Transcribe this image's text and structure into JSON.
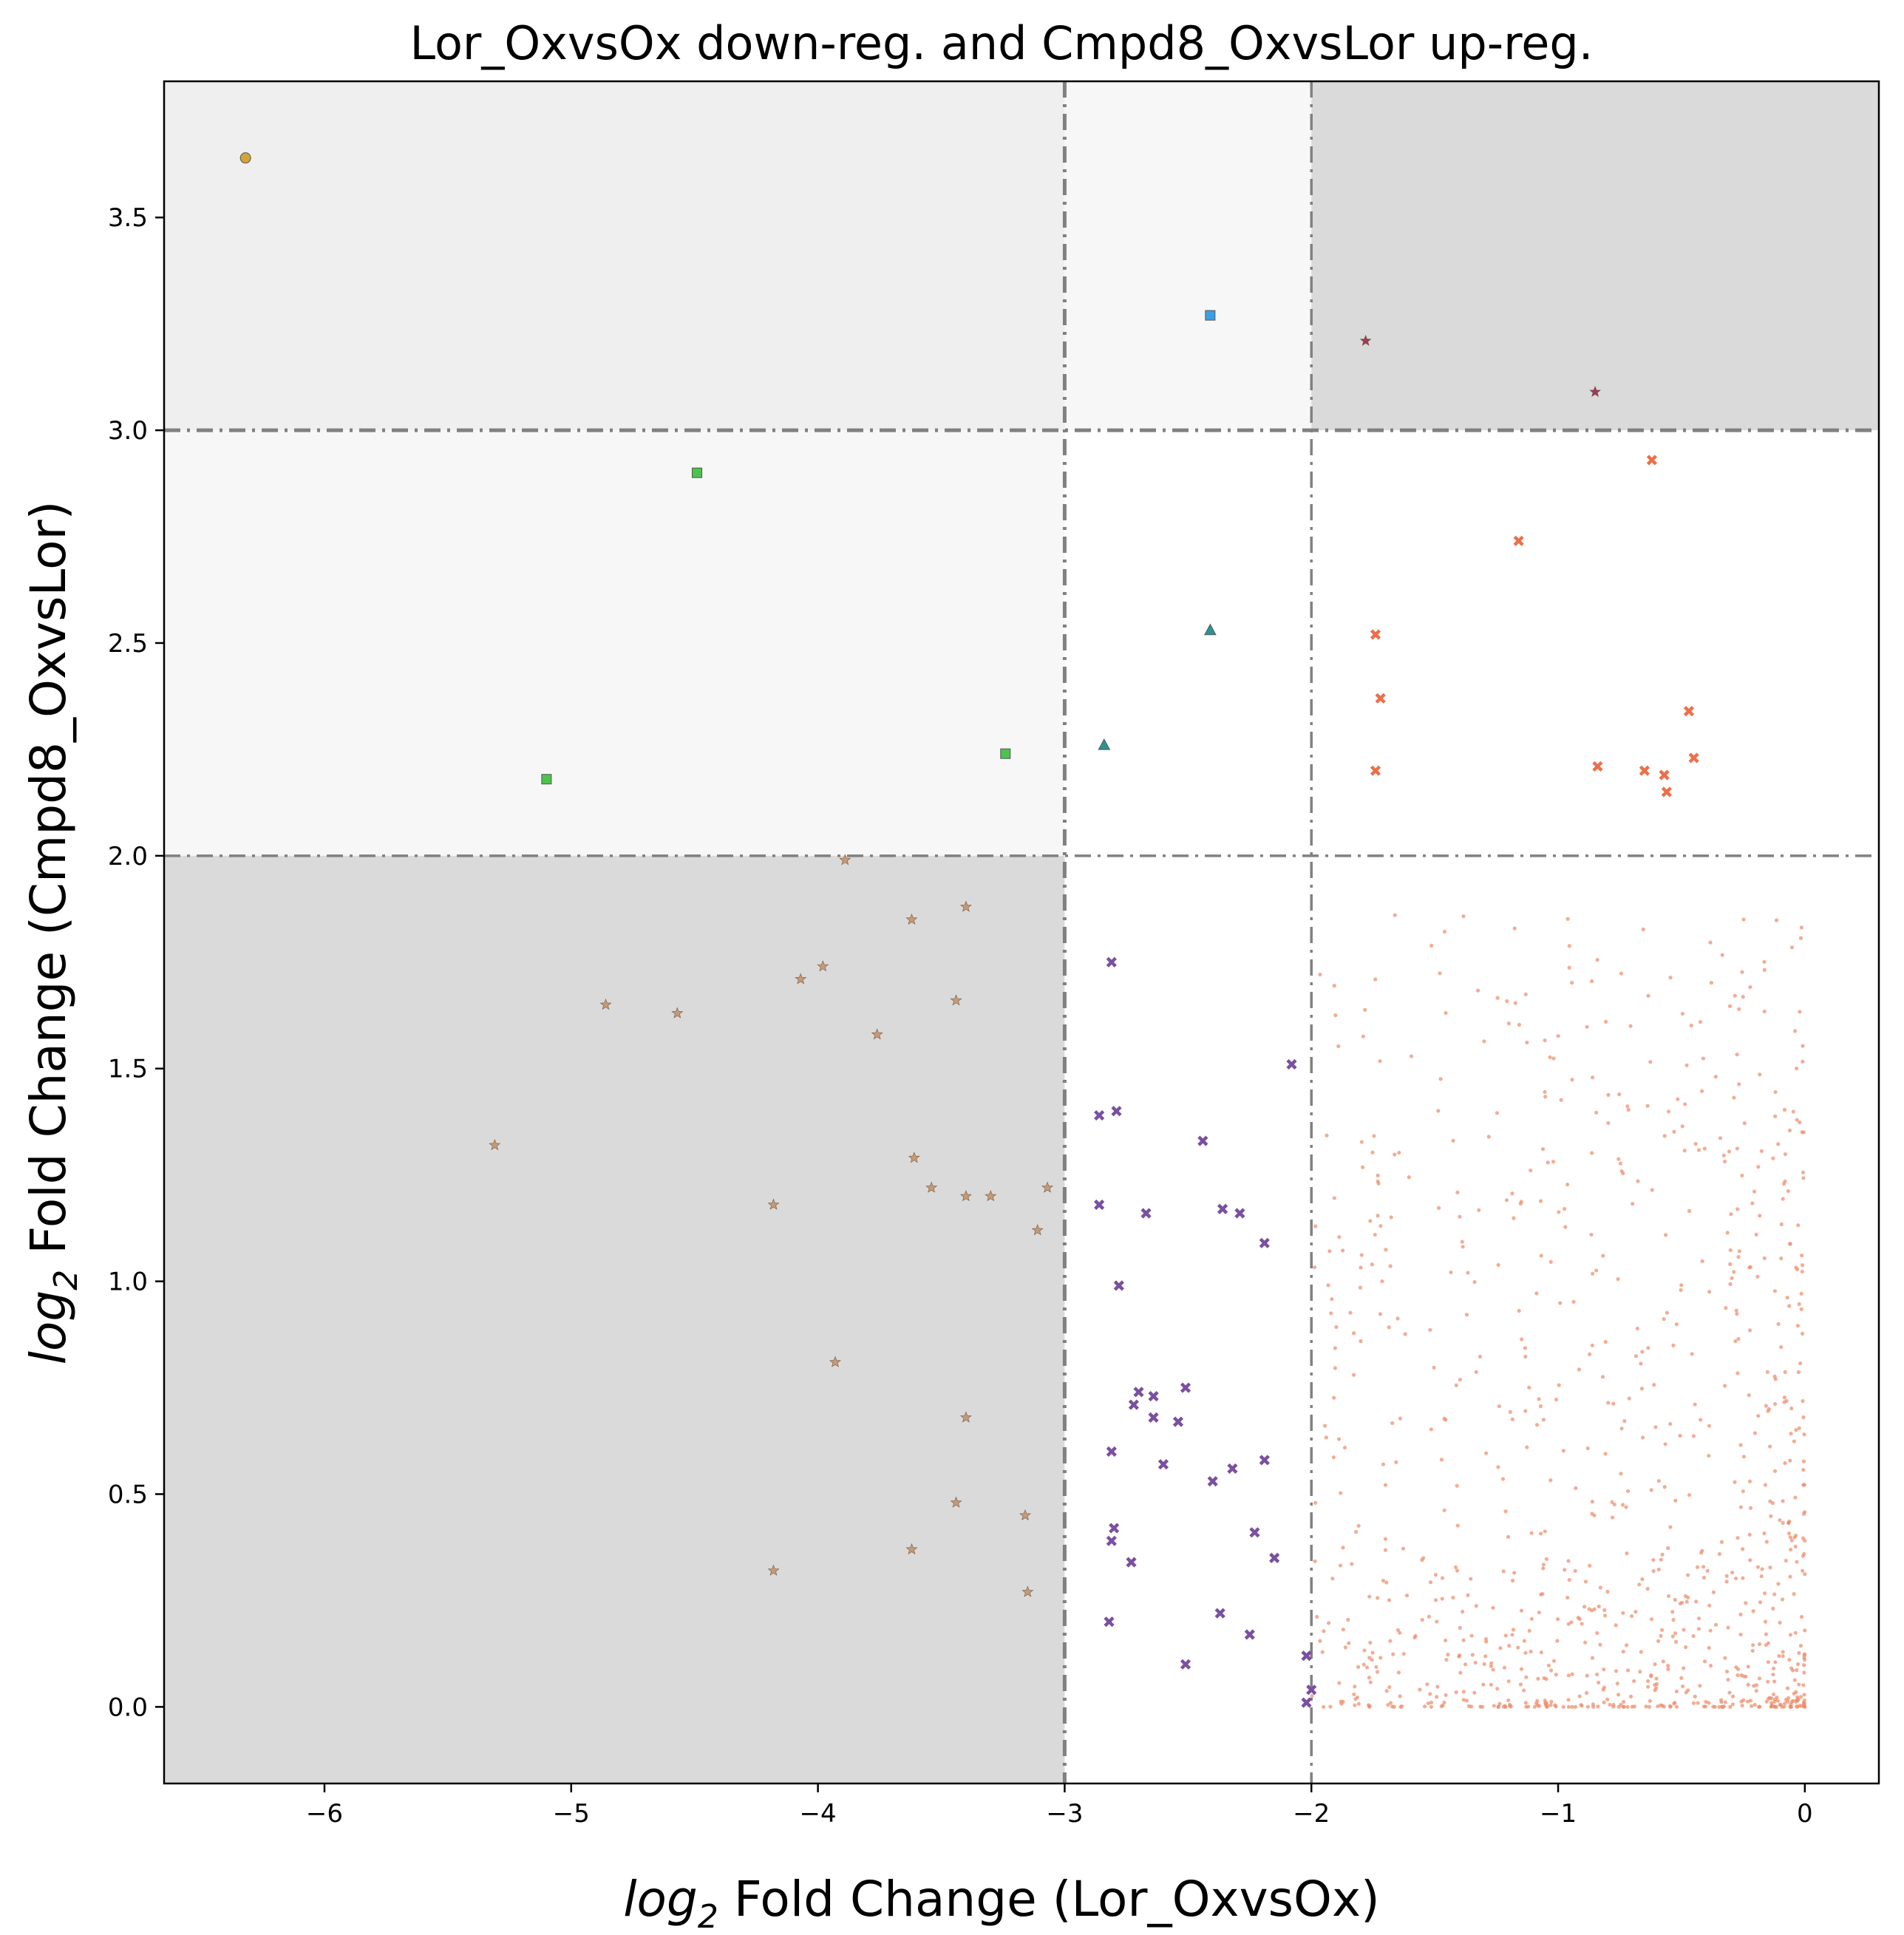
{
  "chart_data": {
    "type": "scatter",
    "title": "Lor_OxvsOx down-reg. and Cmpd8_OxvsLor up-reg.",
    "xlabel_prefix": "log",
    "xlabel_sub": "2",
    "xlabel_rest": " Fold Change (Lor_OxvsOx)",
    "ylabel_prefix": "log",
    "ylabel_sub": "2",
    "ylabel_rest": " Fold Change (Cmpd8_OxvsLor)",
    "xlim": [
      -6.65,
      0.3
    ],
    "ylim": [
      -0.18,
      3.82
    ],
    "xticks": [
      -6,
      -5,
      -4,
      -3,
      -2,
      -1,
      0
    ],
    "xtick_labels": [
      "−6",
      "−5",
      "−4",
      "−3",
      "−2",
      "−1",
      "0"
    ],
    "yticks": [
      0.0,
      0.5,
      1.0,
      1.5,
      2.0,
      2.5,
      3.0,
      3.5
    ],
    "ytick_labels": [
      "0.0",
      "0.5",
      "1.0",
      "1.5",
      "2.0",
      "2.5",
      "3.0",
      "3.5"
    ],
    "grid": false,
    "legend": "none",
    "thresholds": {
      "x": [
        -3,
        -2
      ],
      "y": [
        2,
        3
      ]
    },
    "regions": [
      {
        "x": [
          -6.65,
          -3
        ],
        "y": [
          3,
          3.82
        ],
        "color": "#efefef"
      },
      {
        "x": [
          -3,
          -2
        ],
        "y": [
          3,
          3.82
        ],
        "color": "#f7f7f7"
      },
      {
        "x": [
          -2,
          0.3
        ],
        "y": [
          3,
          3.82
        ],
        "color": "#dadada"
      },
      {
        "x": [
          -6.65,
          -3
        ],
        "y": [
          2,
          3
        ],
        "color": "#f7f7f7"
      },
      {
        "x": [
          -6.65,
          -3
        ],
        "y": [
          -0.18,
          2
        ],
        "color": "#dadada"
      }
    ],
    "series": [
      {
        "marker": "circle",
        "color": "#d4a43a",
        "points": [
          [
            -6.32,
            3.64
          ]
        ]
      },
      {
        "marker": "square",
        "color": "#3d9ee8",
        "points": [
          [
            -2.41,
            3.27
          ]
        ]
      },
      {
        "marker": "star",
        "color": "#9c3a5e",
        "points": [
          [
            -1.78,
            3.21
          ],
          [
            -0.85,
            3.09
          ]
        ]
      },
      {
        "marker": "square",
        "color": "#4cc44c",
        "points": [
          [
            -4.49,
            2.9
          ],
          [
            -5.1,
            2.18
          ],
          [
            -3.24,
            2.24
          ]
        ]
      },
      {
        "marker": "triangle",
        "color": "#2a9494",
        "points": [
          [
            -2.41,
            2.53
          ],
          [
            -2.84,
            2.26
          ]
        ]
      },
      {
        "marker": "x",
        "color": "#ec6f4a",
        "points": [
          [
            -0.62,
            2.93
          ],
          [
            -1.16,
            2.74
          ],
          [
            -1.74,
            2.52
          ],
          [
            -1.72,
            2.37
          ],
          [
            -1.74,
            2.2
          ],
          [
            -0.84,
            2.21
          ],
          [
            -0.47,
            2.34
          ],
          [
            -0.45,
            2.23
          ],
          [
            -0.65,
            2.2
          ],
          [
            -0.57,
            2.19
          ],
          [
            -0.56,
            2.15
          ]
        ]
      },
      {
        "marker": "star",
        "color": "#c49a78",
        "points": [
          [
            -3.89,
            1.99
          ],
          [
            -3.62,
            1.85
          ],
          [
            -3.4,
            1.88
          ],
          [
            -3.98,
            1.74
          ],
          [
            -4.07,
            1.71
          ],
          [
            -4.86,
            1.65
          ],
          [
            -4.57,
            1.63
          ],
          [
            -3.44,
            1.66
          ],
          [
            -3.76,
            1.58
          ],
          [
            -5.31,
            1.32
          ],
          [
            -3.61,
            1.29
          ],
          [
            -3.54,
            1.22
          ],
          [
            -3.07,
            1.22
          ],
          [
            -3.3,
            1.2
          ],
          [
            -3.4,
            1.2
          ],
          [
            -4.18,
            1.18
          ],
          [
            -3.11,
            1.12
          ],
          [
            -3.93,
            0.81
          ],
          [
            -3.4,
            0.68
          ],
          [
            -3.44,
            0.48
          ],
          [
            -3.16,
            0.45
          ],
          [
            -3.62,
            0.37
          ],
          [
            -4.18,
            0.32
          ],
          [
            -3.15,
            0.27
          ]
        ]
      },
      {
        "marker": "x",
        "color": "#7a4fa0",
        "points": [
          [
            -2.81,
            1.75
          ],
          [
            -2.08,
            1.51
          ],
          [
            -2.79,
            1.4
          ],
          [
            -2.86,
            1.39
          ],
          [
            -2.44,
            1.33
          ],
          [
            -2.86,
            1.18
          ],
          [
            -2.36,
            1.17
          ],
          [
            -2.29,
            1.16
          ],
          [
            -2.67,
            1.16
          ],
          [
            -2.19,
            1.09
          ],
          [
            -2.78,
            0.99
          ],
          [
            -2.51,
            0.75
          ],
          [
            -2.7,
            0.74
          ],
          [
            -2.64,
            0.73
          ],
          [
            -2.72,
            0.71
          ],
          [
            -2.64,
            0.68
          ],
          [
            -2.54,
            0.67
          ],
          [
            -2.81,
            0.6
          ],
          [
            -2.19,
            0.58
          ],
          [
            -2.6,
            0.57
          ],
          [
            -2.32,
            0.56
          ],
          [
            -2.4,
            0.53
          ],
          [
            -2.8,
            0.42
          ],
          [
            -2.23,
            0.41
          ],
          [
            -2.81,
            0.39
          ],
          [
            -2.15,
            0.35
          ],
          [
            -2.73,
            0.34
          ],
          [
            -2.37,
            0.22
          ],
          [
            -2.82,
            0.2
          ],
          [
            -2.25,
            0.17
          ],
          [
            -2.02,
            0.12
          ],
          [
            -2.51,
            0.1
          ],
          [
            -2.0,
            0.04
          ],
          [
            -2.02,
            0.01
          ]
        ]
      }
    ],
    "background_cloud": {
      "marker": "dot",
      "color": "#ec8a68",
      "count": 950,
      "x_range": [
        -2.0,
        0.0
      ],
      "y_range": [
        0.0,
        1.87
      ]
    }
  }
}
